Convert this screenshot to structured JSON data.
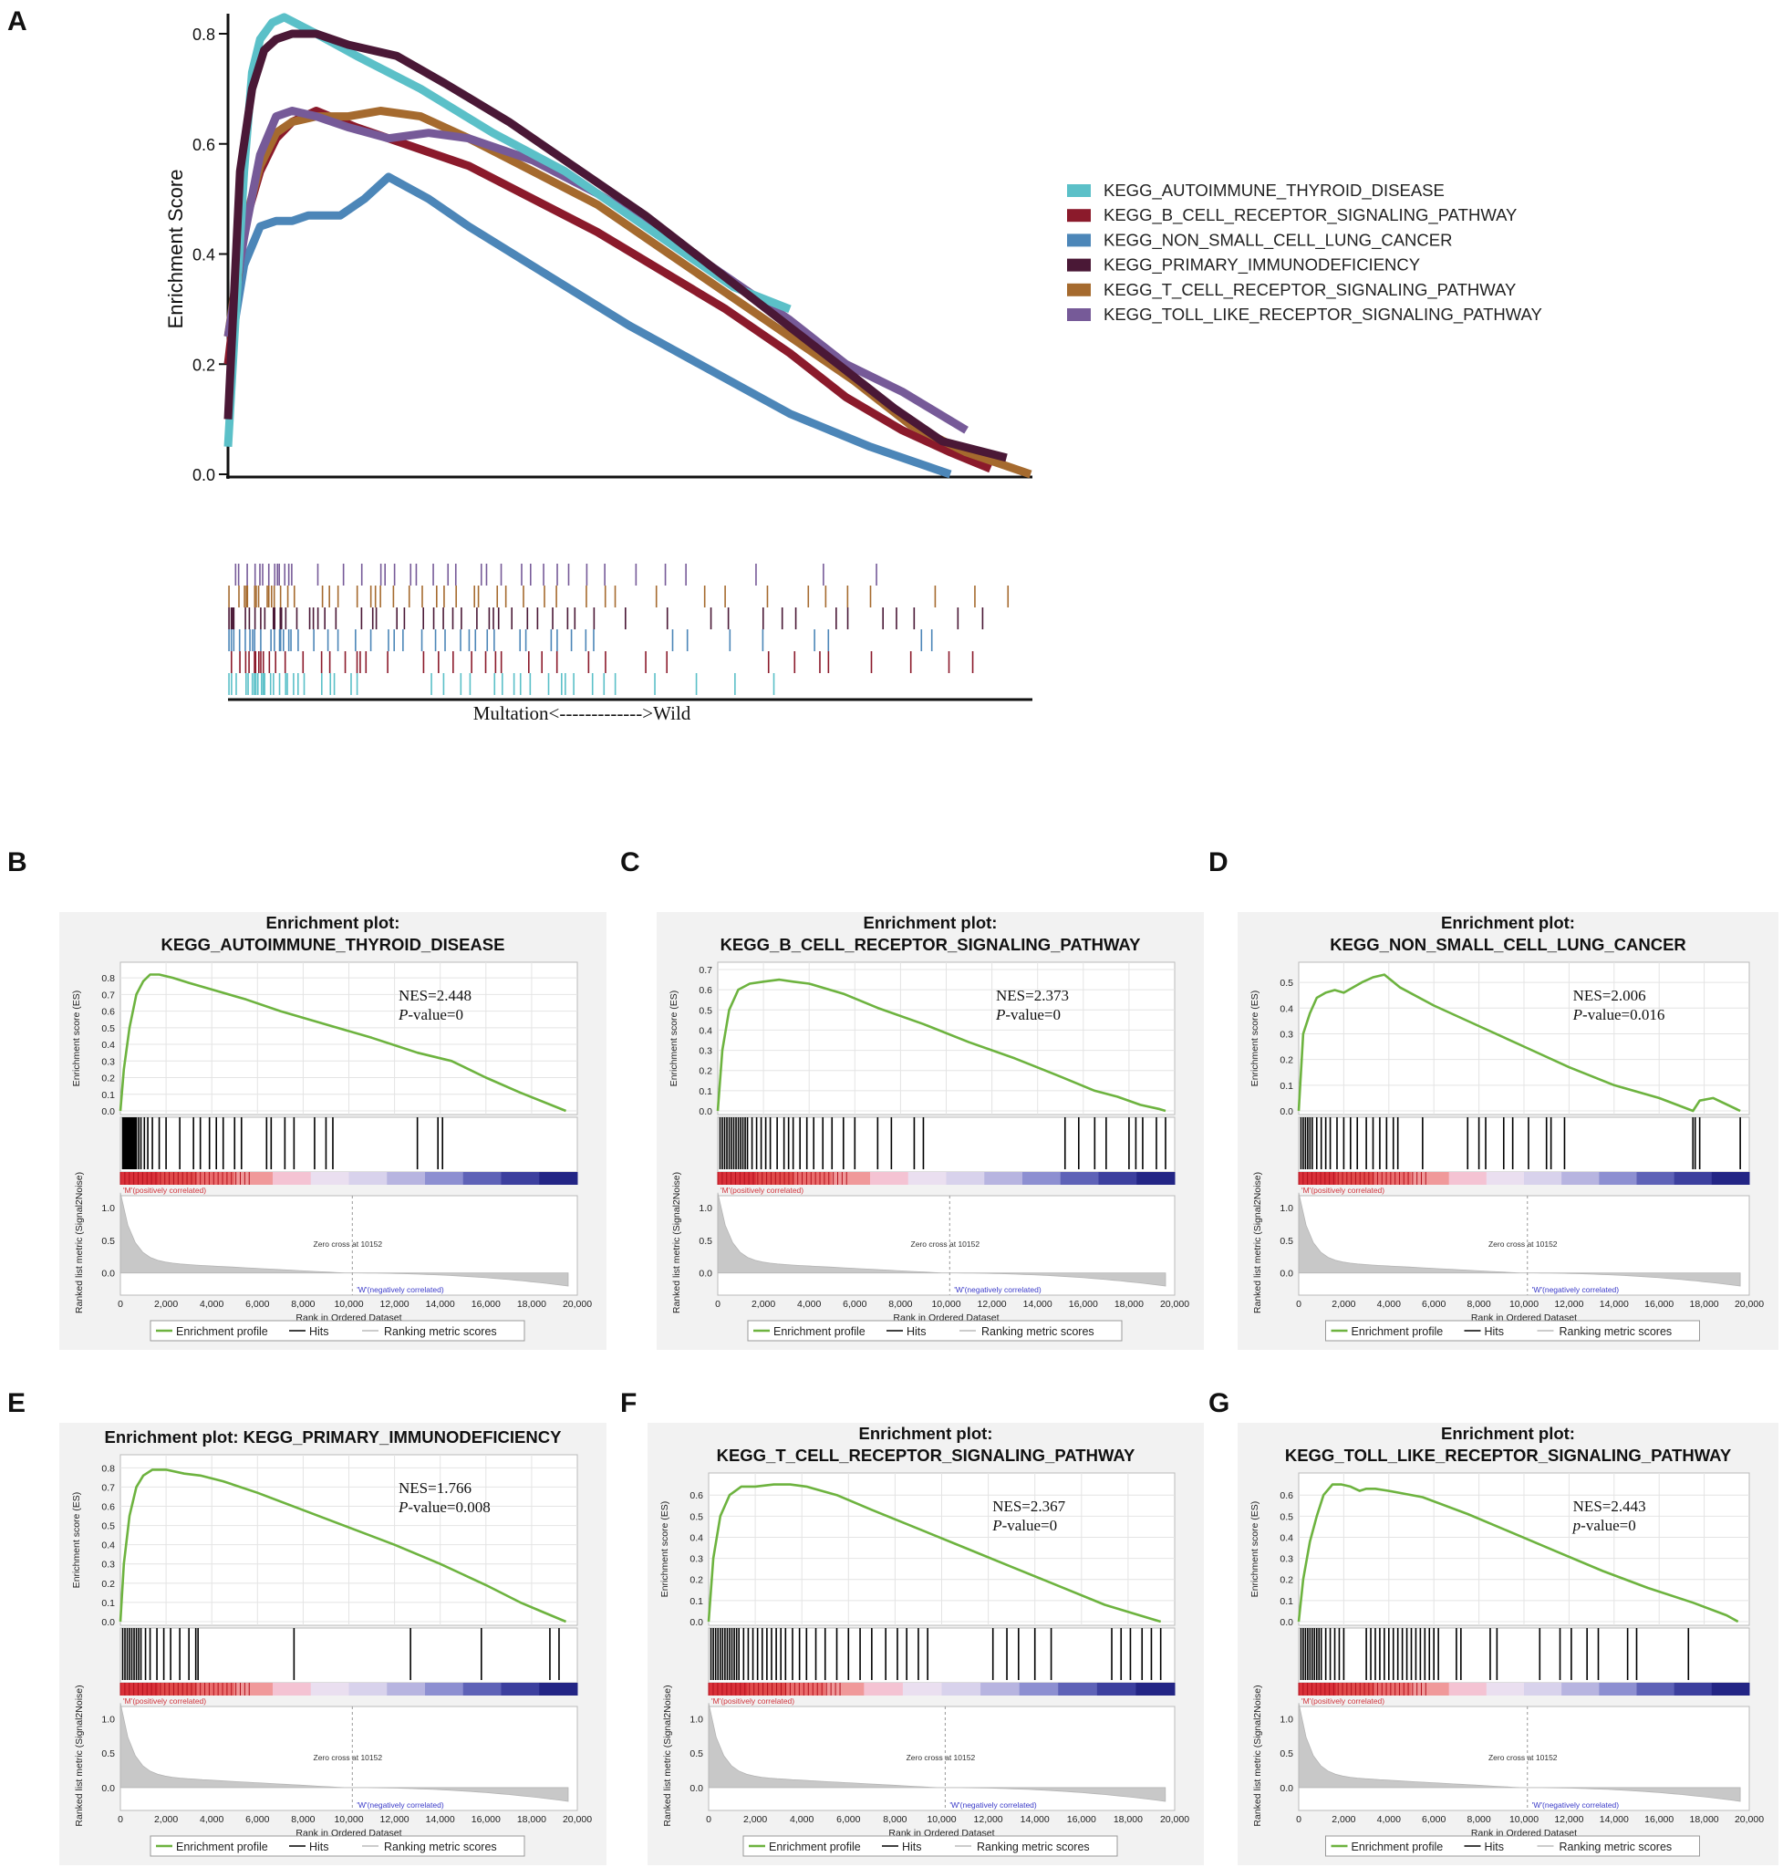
{
  "chart_data": [
    {
      "panel": "A",
      "type": "line",
      "title": "",
      "xlabel": "Multation<------------->Wild",
      "ylabel": "Enrichment Score",
      "ylim": [
        0,
        0.85
      ],
      "yticks": [
        "0.0",
        "0.2",
        "0.4",
        "0.6",
        "0.8"
      ],
      "legend_position": "right",
      "series": [
        {
          "name": "KEGG_AUTOIMMUNE_THYROID_DISEASE",
          "color": "#5bc0c8",
          "x": [
            0,
            0.02,
            0.03,
            0.04,
            0.055,
            0.07,
            0.11,
            0.16,
            0.24,
            0.33,
            0.42,
            0.5,
            0.58,
            0.63,
            0.7
          ],
          "y": [
            0.05,
            0.55,
            0.73,
            0.79,
            0.82,
            0.83,
            0.8,
            0.76,
            0.7,
            0.62,
            0.55,
            0.47,
            0.39,
            0.34,
            0.3
          ]
        },
        {
          "name": "KEGG_B_CELL_RECEPTOR_SIGNALING_PATHWAY",
          "color": "#8b1a2b",
          "x": [
            0,
            0.02,
            0.04,
            0.06,
            0.08,
            0.11,
            0.16,
            0.22,
            0.3,
            0.38,
            0.46,
            0.54,
            0.62,
            0.7,
            0.77,
            0.84,
            0.9,
            0.95
          ],
          "y": [
            0.2,
            0.45,
            0.55,
            0.61,
            0.64,
            0.66,
            0.63,
            0.6,
            0.56,
            0.5,
            0.44,
            0.37,
            0.3,
            0.22,
            0.14,
            0.08,
            0.04,
            0.01
          ]
        },
        {
          "name": "KEGG_NON_SMALL_CELL_LUNG_CANCER",
          "color": "#4c86b8",
          "x": [
            0,
            0.02,
            0.04,
            0.06,
            0.08,
            0.1,
            0.14,
            0.17,
            0.2,
            0.25,
            0.3,
            0.4,
            0.5,
            0.6,
            0.7,
            0.8,
            0.86,
            0.9
          ],
          "y": [
            0.2,
            0.38,
            0.45,
            0.46,
            0.46,
            0.47,
            0.47,
            0.5,
            0.54,
            0.5,
            0.45,
            0.36,
            0.27,
            0.19,
            0.11,
            0.05,
            0.02,
            0.0
          ]
        },
        {
          "name": "KEGG_PRIMARY_IMMUNODEFICIENCY",
          "color": "#4a1836",
          "x": [
            0,
            0.015,
            0.03,
            0.045,
            0.06,
            0.08,
            0.11,
            0.15,
            0.21,
            0.27,
            0.35,
            0.43,
            0.52,
            0.6,
            0.68,
            0.76,
            0.83,
            0.89,
            0.97
          ],
          "y": [
            0.1,
            0.55,
            0.7,
            0.77,
            0.79,
            0.8,
            0.8,
            0.78,
            0.76,
            0.71,
            0.64,
            0.56,
            0.47,
            0.38,
            0.29,
            0.2,
            0.12,
            0.06,
            0.03
          ]
        },
        {
          "name": "KEGG_T_CELL_RECEPTOR_SIGNALING_PATHWAY",
          "color": "#a56a2e",
          "x": [
            0,
            0.02,
            0.04,
            0.06,
            0.08,
            0.11,
            0.15,
            0.19,
            0.24,
            0.3,
            0.38,
            0.46,
            0.54,
            0.62,
            0.7,
            0.78,
            0.85,
            0.92,
            1.0
          ],
          "y": [
            0.25,
            0.45,
            0.56,
            0.62,
            0.64,
            0.65,
            0.65,
            0.66,
            0.65,
            0.61,
            0.55,
            0.49,
            0.41,
            0.33,
            0.25,
            0.17,
            0.09,
            0.04,
            0.0
          ]
        },
        {
          "name": "KEGG_TOLL_LIKE_RECEPTOR_SIGNALING_PATHWAY",
          "color": "#765a98",
          "x": [
            0,
            0.02,
            0.04,
            0.06,
            0.08,
            0.11,
            0.15,
            0.2,
            0.25,
            0.3,
            0.38,
            0.46,
            0.54,
            0.62,
            0.7,
            0.77,
            0.84,
            0.92
          ],
          "y": [
            0.25,
            0.43,
            0.58,
            0.65,
            0.66,
            0.65,
            0.63,
            0.61,
            0.62,
            0.61,
            0.57,
            0.51,
            0.44,
            0.36,
            0.28,
            0.2,
            0.15,
            0.08
          ]
        }
      ]
    },
    {
      "panel": "B",
      "type": "line",
      "title_line1": "Enrichment plot:",
      "title_line2": "KEGG_AUTOIMMUNE_THYROID_DISEASE",
      "nes": "NES=2.448",
      "p": "-value=0",
      "p_letter": "P",
      "ylabel": "Enrichment score (ES)",
      "ylim": [
        0,
        0.85
      ],
      "yticks": [
        "0.0",
        "0.1",
        "0.2",
        "0.3",
        "0.4",
        "0.5",
        "0.6",
        "0.7",
        "0.8"
      ],
      "x": [
        0,
        150,
        400,
        700,
        1000,
        1300,
        1700,
        2300,
        3000,
        4000,
        5500,
        7000,
        9000,
        11000,
        13000,
        14500,
        16000,
        17500,
        19500
      ],
      "y": [
        0.0,
        0.25,
        0.5,
        0.7,
        0.78,
        0.82,
        0.82,
        0.8,
        0.77,
        0.73,
        0.67,
        0.6,
        0.52,
        0.44,
        0.35,
        0.3,
        0.2,
        0.11,
        0.0
      ],
      "hits": [
        100,
        150,
        200,
        250,
        300,
        350,
        400,
        450,
        500,
        550,
        600,
        650,
        700,
        800,
        900,
        1050,
        1200,
        1400,
        1700,
        2000,
        2600,
        3200,
        3500,
        3900,
        4200,
        4500,
        5000,
        5300,
        6400,
        6600,
        7200,
        7600,
        8500,
        9000,
        9300,
        13000,
        13900,
        14100
      ]
    },
    {
      "panel": "C",
      "type": "line",
      "title_line1": "Enrichment plot:",
      "title_line2": "KEGG_B_CELL_RECEPTOR_SIGNALING_PATHWAY",
      "nes": "NES=2.373",
      "p": "-value=0",
      "p_letter": "P",
      "ylabel": "Enrichment score (ES)",
      "ylim": [
        0,
        0.7
      ],
      "yticks": [
        "0.0",
        "0.1",
        "0.2",
        "0.3",
        "0.4",
        "0.5",
        "0.6",
        "0.7"
      ],
      "x": [
        0,
        200,
        500,
        900,
        1400,
        2000,
        2700,
        3300,
        4000,
        5500,
        7000,
        9000,
        11000,
        13000,
        15000,
        16500,
        17500,
        18500,
        19300,
        19600
      ],
      "y": [
        0.0,
        0.3,
        0.5,
        0.6,
        0.63,
        0.64,
        0.65,
        0.64,
        0.63,
        0.58,
        0.51,
        0.43,
        0.34,
        0.26,
        0.17,
        0.1,
        0.07,
        0.03,
        0.01,
        0.0
      ],
      "hits": [
        100,
        200,
        300,
        400,
        500,
        600,
        700,
        800,
        900,
        1000,
        1100,
        1200,
        1300,
        1500,
        1700,
        1900,
        2100,
        2300,
        2600,
        2900,
        3100,
        3300,
        3600,
        3900,
        4200,
        4600,
        5000,
        5500,
        6000,
        7000,
        7600,
        8600,
        9000,
        15200,
        15800,
        16500,
        17000,
        18000,
        18300,
        18600,
        19200,
        19600
      ]
    },
    {
      "panel": "D",
      "type": "line",
      "title_line1": "Enrichment plot:",
      "title_line2": "KEGG_NON_SMALL_CELL_LUNG_CANCER",
      "nes": "NES=2.006",
      "p": "-value=0.016",
      "p_letter": "P",
      "ylabel": "Enrichment score (ES)",
      "ylim": [
        0,
        0.55
      ],
      "yticks": [
        "0.0",
        "0.1",
        "0.2",
        "0.3",
        "0.4",
        "0.5"
      ],
      "x": [
        0,
        200,
        500,
        800,
        1200,
        1600,
        2000,
        2400,
        2800,
        3300,
        3800,
        4500,
        6000,
        8000,
        10000,
        12000,
        14000,
        16000,
        17500,
        17800,
        18400,
        19600
      ],
      "y": [
        0.0,
        0.3,
        0.38,
        0.44,
        0.46,
        0.47,
        0.46,
        0.48,
        0.5,
        0.52,
        0.53,
        0.48,
        0.41,
        0.33,
        0.25,
        0.17,
        0.1,
        0.05,
        0.0,
        0.04,
        0.05,
        0.0
      ],
      "hits": [
        100,
        200,
        300,
        400,
        500,
        600,
        800,
        1000,
        1200,
        1400,
        1700,
        2000,
        2300,
        2600,
        3000,
        3300,
        3600,
        3900,
        4200,
        4400,
        5500,
        7500,
        8000,
        8300,
        9100,
        9500,
        10200,
        11000,
        11200,
        11800,
        17500,
        17600,
        17800,
        19600
      ]
    },
    {
      "panel": "E",
      "type": "line",
      "title_line1": "Enrichment plot: KEGG_PRIMARY_IMMUNODEFICIENCY",
      "title_line2": "",
      "nes": "NES=1.766",
      "p": "-value=0.008",
      "p_letter": "P",
      "ylabel": "Enrichment score (ES)",
      "ylim": [
        0,
        0.83
      ],
      "yticks": [
        "0.0",
        "0.1",
        "0.2",
        "0.3",
        "0.4",
        "0.5",
        "0.6",
        "0.7",
        "0.8"
      ],
      "x": [
        0,
        150,
        400,
        700,
        1000,
        1400,
        2000,
        2800,
        3500,
        4500,
        6000,
        8000,
        10000,
        12000,
        14000,
        16000,
        17500,
        18500,
        19500
      ],
      "y": [
        0.0,
        0.3,
        0.55,
        0.7,
        0.76,
        0.79,
        0.79,
        0.77,
        0.76,
        0.73,
        0.67,
        0.58,
        0.49,
        0.4,
        0.3,
        0.19,
        0.1,
        0.05,
        0.0
      ],
      "hits": [
        100,
        200,
        300,
        400,
        500,
        600,
        700,
        800,
        900,
        1100,
        1300,
        1600,
        1900,
        2200,
        2600,
        3000,
        3300,
        3400,
        7600,
        12700,
        15800,
        18800,
        19200
      ]
    },
    {
      "panel": "F",
      "type": "line",
      "title_line1": "Enrichment plot:",
      "title_line2": "KEGG_T_CELL_RECEPTOR_SIGNALING_PATHWAY",
      "nes": "NES=2.367",
      "p": "-value=0",
      "p_letter": "P",
      "ylabel": "Enrichment score (ES)",
      "ylim": [
        0,
        0.67
      ],
      "yticks": [
        "0.0",
        "0.1",
        "0.2",
        "0.3",
        "0.4",
        "0.5",
        "0.6"
      ],
      "x": [
        0,
        200,
        500,
        900,
        1400,
        2000,
        2800,
        3500,
        4200,
        5500,
        7000,
        9000,
        11000,
        13000,
        15000,
        17000,
        18500,
        19400
      ],
      "y": [
        0.0,
        0.3,
        0.5,
        0.6,
        0.64,
        0.64,
        0.65,
        0.65,
        0.64,
        0.6,
        0.53,
        0.44,
        0.35,
        0.26,
        0.17,
        0.08,
        0.03,
        0.0
      ],
      "hits": [
        100,
        200,
        300,
        400,
        500,
        600,
        700,
        800,
        900,
        1000,
        1100,
        1200,
        1300,
        1500,
        1700,
        1900,
        2100,
        2300,
        2500,
        2700,
        2900,
        3100,
        3300,
        3600,
        3900,
        4200,
        4600,
        5000,
        5500,
        6000,
        6500,
        7000,
        7600,
        8100,
        8500,
        9000,
        9400,
        12200,
        12800,
        13300,
        14000,
        14700,
        17300,
        17700,
        18100,
        18600,
        19000,
        19400
      ]
    },
    {
      "panel": "G",
      "type": "line",
      "title_line1": "Enrichment plot:",
      "title_line2": "KEGG_TOLL_LIKE_RECEPTOR_SIGNALING_PATHWAY",
      "nes": "NES=2.443",
      "p": "-value=0",
      "p_letter": "p",
      "ylabel": "Enrichment score (ES)",
      "ylim": [
        0,
        0.67
      ],
      "yticks": [
        "0.0",
        "0.1",
        "0.2",
        "0.3",
        "0.4",
        "0.5",
        "0.6"
      ],
      "x": [
        0,
        200,
        500,
        800,
        1100,
        1500,
        1900,
        2300,
        2700,
        3000,
        3400,
        4000,
        5500,
        7500,
        9500,
        11500,
        13500,
        15500,
        17500,
        19000,
        19500
      ],
      "y": [
        0.0,
        0.2,
        0.38,
        0.5,
        0.6,
        0.65,
        0.65,
        0.64,
        0.62,
        0.63,
        0.63,
        0.62,
        0.59,
        0.51,
        0.42,
        0.33,
        0.24,
        0.16,
        0.09,
        0.03,
        0.0
      ],
      "hits": [
        100,
        200,
        300,
        400,
        500,
        600,
        700,
        800,
        900,
        1000,
        1200,
        1400,
        1600,
        1800,
        2000,
        3000,
        3200,
        3400,
        3600,
        3800,
        4000,
        4200,
        4400,
        4600,
        4800,
        5000,
        5200,
        5400,
        5600,
        5800,
        6000,
        6200,
        7000,
        7200,
        8500,
        8800,
        10700,
        11600,
        12100,
        12800,
        13300,
        14600,
        15000,
        17300
      ]
    }
  ],
  "figure": {
    "panel_labels": [
      "A",
      "B",
      "C",
      "D",
      "E",
      "F",
      "G"
    ],
    "panel_a_xlabel": "Multation<------------->Wild",
    "gsea_common": {
      "xlabel": "Rank in Ordered Dataset",
      "metric_ylabel": "Ranked list metric (Signal2Noise)",
      "pos_label": "'M'(positively correlated)",
      "neg_label": "'W'(negatively correlated)",
      "zero_cross": "Zero cross at 10152",
      "xticks": [
        "0",
        "2,000",
        "4,000",
        "6,000",
        "8,000",
        "10,000",
        "12,000",
        "14,000",
        "16,000",
        "18,000",
        "20,000"
      ],
      "metric_yticks": [
        "0.0",
        "0.5",
        "1.0"
      ],
      "legend": [
        "Enrichment profile",
        "Hits",
        "Ranking metric scores"
      ],
      "es_color": "#6db33f"
    }
  }
}
